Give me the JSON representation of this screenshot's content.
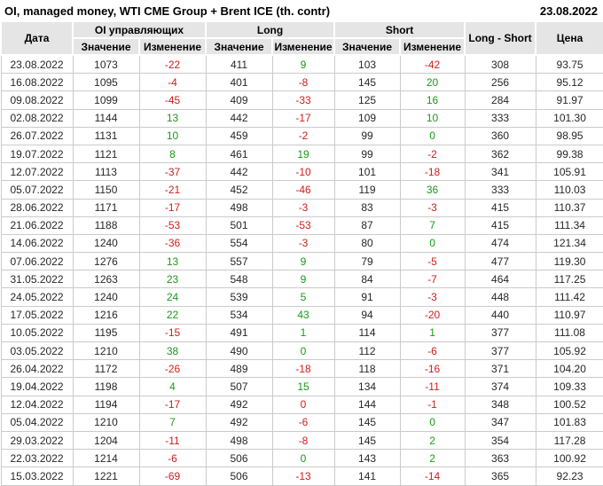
{
  "header": {
    "title": "OI, managed money, WTI CME Group + Brent ICE (th. contr)",
    "report_date": "23.08.2022"
  },
  "table": {
    "columns": {
      "date": "Дата",
      "oi_group": "OI управляющих",
      "long_group": "Long",
      "short_group": "Short",
      "value": "Значение",
      "change": "Изменение",
      "long_short": "Long - Short",
      "price": "Цена"
    }
  },
  "colors": {
    "positive": "#189a18",
    "negative": "#cf1d1d",
    "header_bg": "#e5e5e5",
    "grid": "#cbcbcb"
  },
  "chart_data": {
    "type": "table",
    "title": "OI, managed money, WTI CME Group + Brent ICE (th. contr)",
    "as_of": "23.08.2022",
    "columns": [
      "Дата",
      "OI управляющих — Значение",
      "OI управляющих — Изменение",
      "Long — Значение",
      "Long — Изменение",
      "Short — Значение",
      "Short — Изменение",
      "Long - Short",
      "Цена"
    ],
    "rows": [
      {
        "date": "23.08.2022",
        "oi": "1073",
        "oi_chg": "-22",
        "oi_clr": "neg",
        "long": "411",
        "long_chg": "9",
        "long_clr": "pos",
        "short": "103",
        "short_chg": "-42",
        "short_clr": "neg",
        "long_short": "308",
        "price": "93.75"
      },
      {
        "date": "16.08.2022",
        "oi": "1095",
        "oi_chg": "-4",
        "oi_clr": "neg",
        "long": "401",
        "long_chg": "-8",
        "long_clr": "neg",
        "short": "145",
        "short_chg": "20",
        "short_clr": "pos",
        "long_short": "256",
        "price": "95.12"
      },
      {
        "date": "09.08.2022",
        "oi": "1099",
        "oi_chg": "-45",
        "oi_clr": "neg",
        "long": "409",
        "long_chg": "-33",
        "long_clr": "neg",
        "short": "125",
        "short_chg": "16",
        "short_clr": "pos",
        "long_short": "284",
        "price": "91.97"
      },
      {
        "date": "02.08.2022",
        "oi": "1144",
        "oi_chg": "13",
        "oi_clr": "pos",
        "long": "442",
        "long_chg": "-17",
        "long_clr": "neg",
        "short": "109",
        "short_chg": "10",
        "short_clr": "pos",
        "long_short": "333",
        "price": "101.30"
      },
      {
        "date": "26.07.2022",
        "oi": "1131",
        "oi_chg": "10",
        "oi_clr": "pos",
        "long": "459",
        "long_chg": "-2",
        "long_clr": "neg",
        "short": "99",
        "short_chg": "0",
        "short_clr": "pos",
        "long_short": "360",
        "price": "98.95"
      },
      {
        "date": "19.07.2022",
        "oi": "1121",
        "oi_chg": "8",
        "oi_clr": "pos",
        "long": "461",
        "long_chg": "19",
        "long_clr": "pos",
        "short": "99",
        "short_chg": "-2",
        "short_clr": "neg",
        "long_short": "362",
        "price": "99.38"
      },
      {
        "date": "12.07.2022",
        "oi": "1113",
        "oi_chg": "-37",
        "oi_clr": "neg",
        "long": "442",
        "long_chg": "-10",
        "long_clr": "neg",
        "short": "101",
        "short_chg": "-18",
        "short_clr": "neg",
        "long_short": "341",
        "price": "105.91"
      },
      {
        "date": "05.07.2022",
        "oi": "1150",
        "oi_chg": "-21",
        "oi_clr": "neg",
        "long": "452",
        "long_chg": "-46",
        "long_clr": "neg",
        "short": "119",
        "short_chg": "36",
        "short_clr": "pos",
        "long_short": "333",
        "price": "110.03"
      },
      {
        "date": "28.06.2022",
        "oi": "1171",
        "oi_chg": "-17",
        "oi_clr": "neg",
        "long": "498",
        "long_chg": "-3",
        "long_clr": "neg",
        "short": "83",
        "short_chg": "-3",
        "short_clr": "neg",
        "long_short": "415",
        "price": "110.37"
      },
      {
        "date": "21.06.2022",
        "oi": "1188",
        "oi_chg": "-53",
        "oi_clr": "neg",
        "long": "501",
        "long_chg": "-53",
        "long_clr": "neg",
        "short": "87",
        "short_chg": "7",
        "short_clr": "pos",
        "long_short": "415",
        "price": "111.34"
      },
      {
        "date": "14.06.2022",
        "oi": "1240",
        "oi_chg": "-36",
        "oi_clr": "neg",
        "long": "554",
        "long_chg": "-3",
        "long_clr": "neg",
        "short": "80",
        "short_chg": "0",
        "short_clr": "pos",
        "long_short": "474",
        "price": "121.34"
      },
      {
        "date": "07.06.2022",
        "oi": "1276",
        "oi_chg": "13",
        "oi_clr": "pos",
        "long": "557",
        "long_chg": "9",
        "long_clr": "pos",
        "short": "79",
        "short_chg": "-5",
        "short_clr": "neg",
        "long_short": "477",
        "price": "119.30"
      },
      {
        "date": "31.05.2022",
        "oi": "1263",
        "oi_chg": "23",
        "oi_clr": "pos",
        "long": "548",
        "long_chg": "9",
        "long_clr": "pos",
        "short": "84",
        "short_chg": "-7",
        "short_clr": "neg",
        "long_short": "464",
        "price": "117.25"
      },
      {
        "date": "24.05.2022",
        "oi": "1240",
        "oi_chg": "24",
        "oi_clr": "pos",
        "long": "539",
        "long_chg": "5",
        "long_clr": "pos",
        "short": "91",
        "short_chg": "-3",
        "short_clr": "neg",
        "long_short": "448",
        "price": "111.42"
      },
      {
        "date": "17.05.2022",
        "oi": "1216",
        "oi_chg": "22",
        "oi_clr": "pos",
        "long": "534",
        "long_chg": "43",
        "long_clr": "pos",
        "short": "94",
        "short_chg": "-20",
        "short_clr": "neg",
        "long_short": "440",
        "price": "110.97"
      },
      {
        "date": "10.05.2022",
        "oi": "1195",
        "oi_chg": "-15",
        "oi_clr": "neg",
        "long": "491",
        "long_chg": "1",
        "long_clr": "pos",
        "short": "114",
        "short_chg": "1",
        "short_clr": "pos",
        "long_short": "377",
        "price": "111.08"
      },
      {
        "date": "03.05.2022",
        "oi": "1210",
        "oi_chg": "38",
        "oi_clr": "pos",
        "long": "490",
        "long_chg": "0",
        "long_clr": "pos",
        "short": "112",
        "short_chg": "-6",
        "short_clr": "neg",
        "long_short": "377",
        "price": "105.92"
      },
      {
        "date": "26.04.2022",
        "oi": "1172",
        "oi_chg": "-26",
        "oi_clr": "neg",
        "long": "489",
        "long_chg": "-18",
        "long_clr": "neg",
        "short": "118",
        "short_chg": "-16",
        "short_clr": "neg",
        "long_short": "371",
        "price": "104.20"
      },
      {
        "date": "19.04.2022",
        "oi": "1198",
        "oi_chg": "4",
        "oi_clr": "pos",
        "long": "507",
        "long_chg": "15",
        "long_clr": "pos",
        "short": "134",
        "short_chg": "-11",
        "short_clr": "neg",
        "long_short": "374",
        "price": "109.33"
      },
      {
        "date": "12.04.2022",
        "oi": "1194",
        "oi_chg": "-17",
        "oi_clr": "neg",
        "long": "492",
        "long_chg": "0",
        "long_clr": "neg",
        "short": "144",
        "short_chg": "-1",
        "short_clr": "neg",
        "long_short": "348",
        "price": "100.52"
      },
      {
        "date": "05.04.2022",
        "oi": "1210",
        "oi_chg": "7",
        "oi_clr": "pos",
        "long": "492",
        "long_chg": "-6",
        "long_clr": "neg",
        "short": "145",
        "short_chg": "0",
        "short_clr": "pos",
        "long_short": "347",
        "price": "101.83"
      },
      {
        "date": "29.03.2022",
        "oi": "1204",
        "oi_chg": "-11",
        "oi_clr": "neg",
        "long": "498",
        "long_chg": "-8",
        "long_clr": "neg",
        "short": "145",
        "short_chg": "2",
        "short_clr": "pos",
        "long_short": "354",
        "price": "117.28"
      },
      {
        "date": "22.03.2022",
        "oi": "1214",
        "oi_chg": "-6",
        "oi_clr": "neg",
        "long": "506",
        "long_chg": "0",
        "long_clr": "pos",
        "short": "143",
        "short_chg": "2",
        "short_clr": "pos",
        "long_short": "363",
        "price": "100.92"
      },
      {
        "date": "15.03.2022",
        "oi": "1221",
        "oi_chg": "-69",
        "oi_clr": "neg",
        "long": "506",
        "long_chg": "-13",
        "long_clr": "neg",
        "short": "141",
        "short_chg": "-14",
        "short_clr": "neg",
        "long_short": "365",
        "price": "92.23"
      }
    ]
  }
}
